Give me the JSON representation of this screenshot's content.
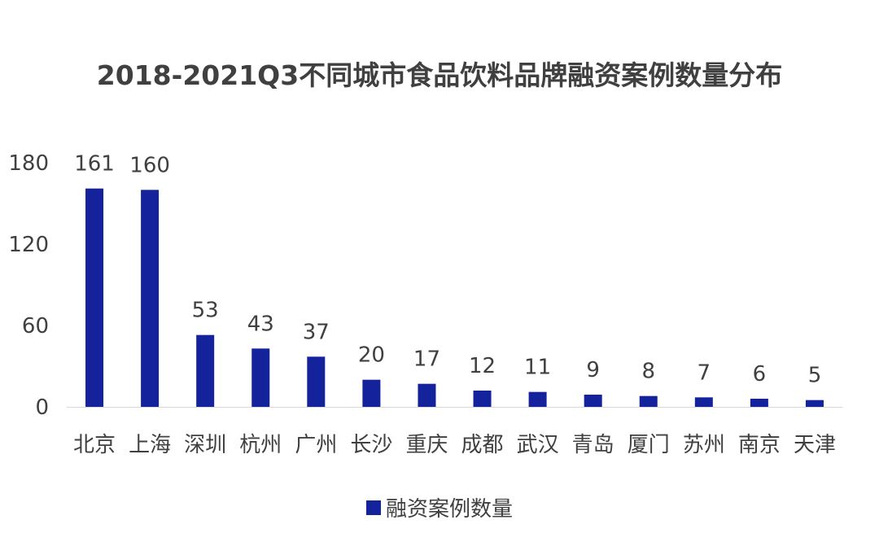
{
  "chart_data": {
    "type": "bar",
    "title": "2018-2021Q3不同城市食品饮料品牌融资案例数量分布",
    "categories": [
      "北京",
      "上海",
      "深圳",
      "杭州",
      "广州",
      "长沙",
      "重庆",
      "成都",
      "武汉",
      "青岛",
      "厦门",
      "苏州",
      "南京",
      "天津"
    ],
    "series": [
      {
        "name": "融资案例数量",
        "values": [
          161,
          160,
          53,
          43,
          37,
          20,
          17,
          12,
          11,
          9,
          8,
          7,
          6,
          5
        ],
        "color": "#14229B"
      }
    ],
    "yticks": [
      "0",
      "60",
      "120",
      "180"
    ],
    "ylim": [
      0,
      180
    ],
    "legend_position": "bottom",
    "grid": false
  }
}
